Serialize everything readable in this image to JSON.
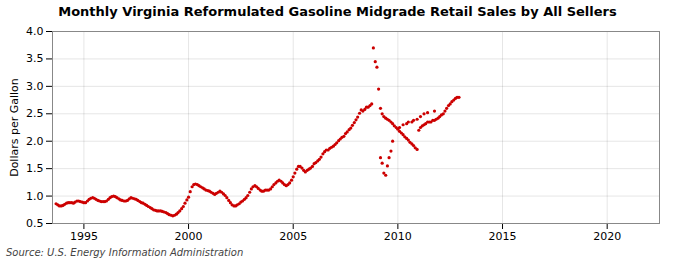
{
  "chart_data": {
    "type": "scatter",
    "title": "Monthly Virginia Reformulated Gasoline Midgrade Retail Sales by All Sellers",
    "ylabel": "Dollars per Gallon",
    "source": "Source: U.S. Energy Information Administration",
    "color": "#cc0000",
    "grid": true,
    "xlim": [
      1993.5,
      2022.5
    ],
    "ylim": [
      0.5,
      4.0
    ],
    "xticks": [
      1995,
      2000,
      2005,
      2010,
      2015,
      2020
    ],
    "yticks": [
      0.5,
      {
        "value": 1.0,
        "label": "1.0"
      },
      1.5,
      {
        "value": 2.0,
        "label": "2.0"
      },
      2.5,
      {
        "value": 3.0,
        "label": "3.0"
      },
      3.5,
      {
        "value": 4.0,
        "label": "4.0"
      }
    ],
    "x": [
      1993.67,
      1993.75,
      1993.83,
      1993.92,
      1994.0,
      1994.08,
      1994.17,
      1994.25,
      1994.33,
      1994.42,
      1994.5,
      1994.58,
      1994.67,
      1994.75,
      1994.83,
      1994.92,
      1995.0,
      1995.08,
      1995.17,
      1995.25,
      1995.33,
      1995.42,
      1995.5,
      1995.58,
      1995.67,
      1995.75,
      1995.83,
      1995.92,
      1996.0,
      1996.08,
      1996.17,
      1996.25,
      1996.33,
      1996.42,
      1996.5,
      1996.58,
      1996.67,
      1996.75,
      1996.83,
      1996.92,
      1997.0,
      1997.08,
      1997.17,
      1997.25,
      1997.33,
      1997.42,
      1997.5,
      1997.58,
      1997.67,
      1997.75,
      1997.83,
      1997.92,
      1998.0,
      1998.08,
      1998.17,
      1998.25,
      1998.33,
      1998.42,
      1998.5,
      1998.58,
      1998.67,
      1998.75,
      1998.83,
      1998.92,
      1999.0,
      1999.08,
      1999.17,
      1999.25,
      1999.33,
      1999.42,
      1999.5,
      1999.58,
      1999.67,
      1999.75,
      1999.83,
      1999.92,
      2000.0,
      2000.08,
      2000.17,
      2000.25,
      2000.33,
      2000.42,
      2000.5,
      2000.58,
      2000.67,
      2000.75,
      2000.83,
      2000.92,
      2001.0,
      2001.08,
      2001.17,
      2001.25,
      2001.33,
      2001.42,
      2001.5,
      2001.58,
      2001.67,
      2001.75,
      2001.83,
      2001.92,
      2002.0,
      2002.08,
      2002.17,
      2002.25,
      2002.33,
      2002.42,
      2002.5,
      2002.58,
      2002.67,
      2002.75,
      2002.83,
      2002.92,
      2003.0,
      2003.08,
      2003.17,
      2003.25,
      2003.33,
      2003.42,
      2003.5,
      2003.58,
      2003.67,
      2003.75,
      2003.83,
      2003.92,
      2004.0,
      2004.08,
      2004.17,
      2004.25,
      2004.33,
      2004.42,
      2004.5,
      2004.58,
      2004.67,
      2004.75,
      2004.83,
      2004.92,
      2005.0,
      2005.08,
      2005.17,
      2005.25,
      2005.33,
      2005.42,
      2005.5,
      2005.58,
      2005.67,
      2005.75,
      2005.83,
      2005.92,
      2006.0,
      2006.08,
      2006.17,
      2006.25,
      2006.33,
      2006.42,
      2006.5,
      2006.58,
      2006.67,
      2006.75,
      2006.83,
      2006.92,
      2007.0,
      2007.08,
      2007.17,
      2007.25,
      2007.33,
      2007.42,
      2007.5,
      2007.58,
      2007.67,
      2007.75,
      2007.83,
      2007.92,
      2008.0,
      2008.08,
      2008.17,
      2008.25,
      2008.33,
      2008.42,
      2008.5,
      2008.58,
      2008.67,
      2008.75,
      2008.83,
      2008.92,
      2009.0,
      2009.08,
      2009.17,
      2009.25,
      2009.33,
      2009.42,
      2009.5,
      2009.58,
      2009.67,
      2009.75,
      2009.83,
      2009.92,
      2010.0,
      2010.08,
      2010.17,
      2010.25,
      2010.33,
      2010.42,
      2010.5,
      2010.58,
      2010.67,
      2010.75,
      2010.83,
      2010.92,
      2011.0,
      2011.08,
      2011.17,
      2011.25,
      2011.33,
      2011.42,
      2011.5,
      2011.58,
      2011.67,
      2011.75,
      2011.83,
      2011.92,
      2012.0,
      2012.08,
      2012.17,
      2012.25,
      2012.33,
      2012.42,
      2012.5,
      2012.58,
      2012.67,
      2012.75,
      2012.83,
      2012.92,
      2009.17,
      2009.25,
      2009.33,
      2009.42,
      2009.5,
      2009.58,
      2009.67,
      2009.75,
      2010.08,
      2010.25,
      2010.42,
      2010.5,
      2010.67,
      2010.75,
      2010.92,
      2011.08,
      2011.25,
      2011.42,
      2011.75
    ],
    "values": [
      0.86,
      0.84,
      0.82,
      0.82,
      0.83,
      0.85,
      0.87,
      0.88,
      0.88,
      0.88,
      0.87,
      0.89,
      0.91,
      0.91,
      0.9,
      0.89,
      0.88,
      0.88,
      0.91,
      0.94,
      0.96,
      0.97,
      0.96,
      0.94,
      0.92,
      0.91,
      0.9,
      0.9,
      0.9,
      0.91,
      0.94,
      0.97,
      0.99,
      1.0,
      0.99,
      0.97,
      0.95,
      0.93,
      0.92,
      0.91,
      0.91,
      0.92,
      0.95,
      0.97,
      0.96,
      0.95,
      0.94,
      0.92,
      0.9,
      0.88,
      0.87,
      0.85,
      0.83,
      0.81,
      0.79,
      0.77,
      0.75,
      0.74,
      0.73,
      0.73,
      0.73,
      0.72,
      0.71,
      0.7,
      0.68,
      0.66,
      0.65,
      0.64,
      0.65,
      0.67,
      0.7,
      0.73,
      0.77,
      0.81,
      0.87,
      0.93,
      0.98,
      1.08,
      1.17,
      1.21,
      1.22,
      1.21,
      1.19,
      1.17,
      1.15,
      1.13,
      1.11,
      1.1,
      1.09,
      1.07,
      1.05,
      1.03,
      1.05,
      1.07,
      1.09,
      1.07,
      1.04,
      1.01,
      0.97,
      0.92,
      0.88,
      0.84,
      0.82,
      0.82,
      0.84,
      0.86,
      0.89,
      0.91,
      0.94,
      0.97,
      1.01,
      1.07,
      1.13,
      1.17,
      1.19,
      1.17,
      1.14,
      1.11,
      1.09,
      1.09,
      1.11,
      1.11,
      1.11,
      1.13,
      1.17,
      1.21,
      1.24,
      1.27,
      1.29,
      1.27,
      1.24,
      1.21,
      1.19,
      1.21,
      1.24,
      1.29,
      1.35,
      1.42,
      1.49,
      1.54,
      1.54,
      1.51,
      1.47,
      1.44,
      1.47,
      1.49,
      1.51,
      1.54,
      1.59,
      1.61,
      1.64,
      1.67,
      1.71,
      1.77,
      1.81,
      1.84,
      1.84,
      1.87,
      1.89,
      1.91,
      1.94,
      1.97,
      2.01,
      2.04,
      2.07,
      2.09,
      2.14,
      2.17,
      2.21,
      2.24,
      2.29,
      2.34,
      2.39,
      2.44,
      2.51,
      2.57,
      2.55,
      2.58,
      2.62,
      2.62,
      2.65,
      2.68,
      3.7,
      3.45,
      3.35,
      2.95,
      2.6,
      2.5,
      2.45,
      2.42,
      2.4,
      2.38,
      2.35,
      2.32,
      2.28,
      2.25,
      2.22,
      2.18,
      2.15,
      2.12,
      2.08,
      2.05,
      2.02,
      1.98,
      1.95,
      1.92,
      1.88,
      1.85,
      2.2,
      2.25,
      2.28,
      2.3,
      2.32,
      2.35,
      2.35,
      2.35,
      2.38,
      2.38,
      2.4,
      2.42,
      2.45,
      2.48,
      2.5,
      2.55,
      2.6,
      2.65,
      2.68,
      2.72,
      2.75,
      2.78,
      2.8,
      2.8,
      1.7,
      1.6,
      1.42,
      1.38,
      1.55,
      1.7,
      1.82,
      2.0,
      2.25,
      2.3,
      2.32,
      2.35,
      2.35,
      2.38,
      2.4,
      2.45,
      2.5,
      2.52,
      2.55
    ]
  }
}
